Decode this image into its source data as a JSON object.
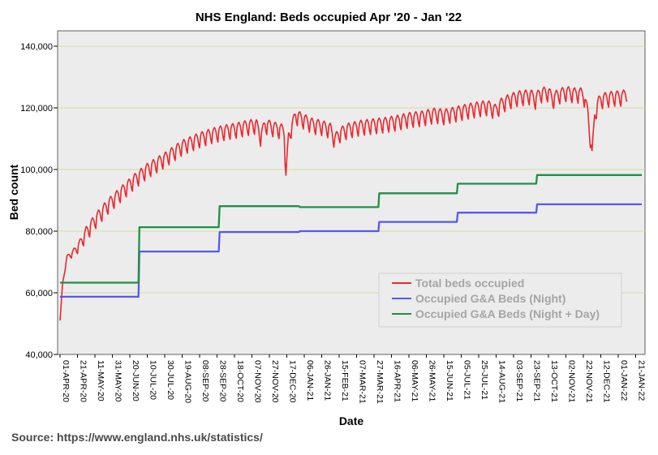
{
  "chart_data": {
    "type": "line",
    "title": "NHS England: Beds occupied Apr '20 - Jan '22",
    "xlabel": "Date",
    "ylabel": "Bed count",
    "ylim": [
      40000,
      145000
    ],
    "yticks": [
      "40,000",
      "60,000",
      "80,000",
      "100,000",
      "120,000",
      "140,000"
    ],
    "ytick_values": [
      40000,
      60000,
      80000,
      100000,
      120000,
      140000
    ],
    "xlim_days": [
      0,
      667
    ],
    "x_start_date": "2020-04-01",
    "xticks": [
      "01-APR-20",
      "21-APR-20",
      "11-MAY-20",
      "31-MAY-20",
      "20-JUN-20",
      "10-JUL-20",
      "30-JUL-20",
      "19-AUG-20",
      "08-SEP-20",
      "28-SEP-20",
      "18-OCT-20",
      "07-NOV-20",
      "27-NOV-20",
      "17-DEC-20",
      "06-JAN-21",
      "26-JAN-21",
      "15-FEB-21",
      "07-MAR-21",
      "27-MAR-21",
      "16-APR-21",
      "06-MAY-21",
      "26-MAY-21",
      "15-JUN-21",
      "05-JUL-21",
      "25-JUL-21",
      "14-AUG-21",
      "03-SEP-21",
      "23-SEP-21",
      "13-OCT-21",
      "02-NOV-21",
      "22-NOV-21",
      "12-DEC-21",
      "01-JAN-22",
      "21-JAN-22"
    ],
    "xtick_step_days": 20,
    "grid": "horizontal",
    "legend_position": "bottom-right",
    "series": [
      {
        "name": "Total beds occupied",
        "color": "#e8292f",
        "style": "weekly-oscillating",
        "weekly_amplitude": 2500,
        "x_days": [
          0,
          3,
          8,
          14,
          22,
          30,
          40,
          55,
          70,
          85,
          100,
          120,
          140,
          160,
          175,
          190,
          200,
          215,
          225,
          230,
          235,
          245,
          257,
          259,
          262,
          270,
          280,
          290,
          300,
          310,
          315,
          320,
          330,
          345,
          360,
          375,
          385,
          400,
          415,
          430,
          440,
          455,
          470,
          480,
          490,
          500,
          505,
          515,
          525,
          540,
          545,
          550,
          560,
          565,
          570,
          580,
          590,
          600,
          605,
          610,
          613,
          617,
          620,
          625,
          635,
          645,
          650
        ],
        "values": [
          51000,
          63000,
          71500,
          72500,
          75000,
          79000,
          83000,
          88000,
          92000,
          96000,
          99500,
          103000,
          107000,
          109500,
          111000,
          112000,
          112500,
          113500,
          114000,
          110000,
          114000,
          113000,
          112000,
          97000,
          110000,
          117000,
          115500,
          114000,
          113500,
          112500,
          109000,
          111000,
          112500,
          113500,
          114000,
          114500,
          115000,
          116000,
          116500,
          117500,
          117000,
          118000,
          119000,
          119500,
          120000,
          118500,
          120500,
          122000,
          123000,
          123500,
          122000,
          124000,
          124500,
          122000,
          123500,
          124500,
          124000,
          124000,
          118000,
          104000,
          117000,
          121000,
          122000,
          122500,
          123000,
          123000,
          124500
        ]
      },
      {
        "name": "Occupied G&A Beds (Night)",
        "color": "#5558f2",
        "style": "step",
        "x_days": [
          0,
          90,
          91,
          182,
          183,
          274,
          275,
          365,
          366,
          455,
          456,
          546,
          547,
          638,
          639,
          667
        ],
        "values": [
          58700,
          58700,
          73400,
          73400,
          79700,
          79700,
          80000,
          80000,
          83000,
          83000,
          86000,
          86000,
          88700,
          88700,
          88700,
          88700
        ]
      },
      {
        "name": "Occupied G&A Beds (Night + Day)",
        "color": "#1f9047",
        "style": "step",
        "x_days": [
          0,
          90,
          91,
          182,
          183,
          274,
          275,
          365,
          366,
          455,
          456,
          546,
          547,
          638,
          639,
          667
        ],
        "values": [
          63300,
          63300,
          81300,
          81300,
          88100,
          88100,
          87800,
          87800,
          92300,
          92300,
          95400,
          95400,
          98200,
          98200,
          98200,
          98200
        ]
      }
    ]
  },
  "source_text": "Source: https://www.england.nhs.uk/statistics/",
  "colors": {
    "plot_background": "#ececec",
    "gridline": "#d5dda5",
    "axis": "#000000"
  }
}
